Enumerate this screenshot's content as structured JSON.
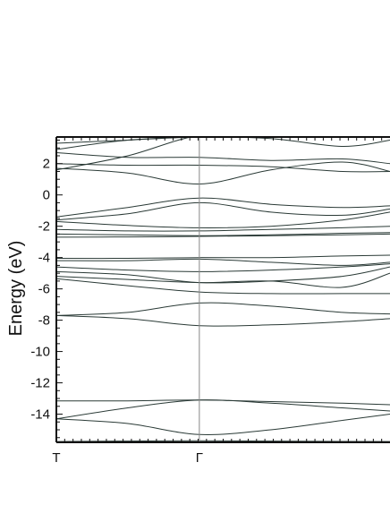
{
  "chart_data": {
    "type": "line",
    "title": "",
    "xlabel": "",
    "ylabel": "Energy (eV)",
    "ylim": [
      -15.8,
      3.7
    ],
    "yticks": [
      2,
      0,
      -2,
      -4,
      -6,
      -8,
      -10,
      -12,
      -14
    ],
    "ytick_labels": [
      "2",
      "0",
      "-2",
      "-4",
      "-6",
      "-8",
      "-10",
      "-12",
      "-14"
    ],
    "xlim": [
      0,
      1.4
    ],
    "x_ticks": [
      {
        "x": 0,
        "label": "T"
      },
      {
        "x": 0.6,
        "label": "Γ"
      }
    ],
    "vertical_line_at": 0.6,
    "grid": false,
    "x": [
      0,
      0.3,
      0.6,
      0.9,
      1.2,
      1.4
    ],
    "series": [
      {
        "values": [
          -15.75,
          -15.72,
          -15.7,
          -15.72,
          -15.74,
          -15.75
        ]
      },
      {
        "values": [
          -14.3,
          -14.6,
          -15.3,
          -15.0,
          -14.4,
          -14.0
        ]
      },
      {
        "values": [
          -14.3,
          -13.6,
          -13.1,
          -13.3,
          -13.6,
          -13.8
        ]
      },
      {
        "values": [
          -13.15,
          -13.15,
          -13.1,
          -13.2,
          -13.3,
          -13.4
        ]
      },
      {
        "values": [
          -7.7,
          -7.5,
          -6.9,
          -7.1,
          -7.5,
          -7.6
        ]
      },
      {
        "values": [
          -7.7,
          -7.9,
          -8.35,
          -8.3,
          -8.1,
          -7.9
        ]
      },
      {
        "values": [
          -5.35,
          -5.8,
          -6.2,
          -6.3,
          -6.3,
          -6.3
        ]
      },
      {
        "values": [
          -5.2,
          -5.4,
          -5.6,
          -5.5,
          -5.9,
          -5.0
        ]
      },
      {
        "values": [
          -4.9,
          -5.1,
          -5.6,
          -5.5,
          -5.2,
          -4.6
        ]
      },
      {
        "values": [
          -4.6,
          -4.8,
          -4.9,
          -4.8,
          -4.6,
          -4.4
        ]
      },
      {
        "values": [
          -4.2,
          -4.2,
          -4.1,
          -4.3,
          -4.5,
          -4.3
        ]
      },
      {
        "values": [
          -4.05,
          -4.05,
          -4.0,
          -4.0,
          -3.9,
          -3.85
        ]
      },
      {
        "values": [
          -2.7,
          -2.68,
          -2.65,
          -2.6,
          -2.55,
          -2.5
        ]
      },
      {
        "values": [
          -2.5,
          -2.55,
          -2.6,
          -2.55,
          -2.45,
          -2.4
        ]
      },
      {
        "values": [
          -2.2,
          -2.3,
          -2.3,
          -2.2,
          -2.1,
          -2.0
        ]
      },
      {
        "values": [
          -1.7,
          -1.95,
          -2.1,
          -2.0,
          -1.6,
          -1.1
        ]
      },
      {
        "values": [
          -1.6,
          -1.2,
          -0.5,
          -1.1,
          -1.3,
          -0.9
        ]
      },
      {
        "values": [
          -1.4,
          -0.8,
          -0.2,
          -0.6,
          -0.8,
          -0.7
        ]
      },
      {
        "values": [
          1.7,
          1.4,
          0.7,
          1.6,
          2.1,
          1.5
        ]
      },
      {
        "values": [
          2.0,
          1.9,
          1.9,
          1.8,
          1.5,
          1.5
        ]
      },
      {
        "values": [
          2.7,
          2.4,
          2.4,
          2.2,
          2.3,
          2.0
        ]
      },
      {
        "values": [
          2.9,
          3.5,
          3.7,
          3.7,
          3.7,
          3.7
        ]
      },
      {
        "values": [
          1.6,
          2.5,
          3.8,
          3.8,
          3.8,
          3.8
        ]
      },
      {
        "values": [
          3.3,
          3.5,
          3.7,
          3.6,
          3.1,
          3.5
        ]
      }
    ]
  },
  "colors": {
    "band_line": "#2a3a36",
    "axis": "#111111",
    "vertical_line": "#888888"
  }
}
